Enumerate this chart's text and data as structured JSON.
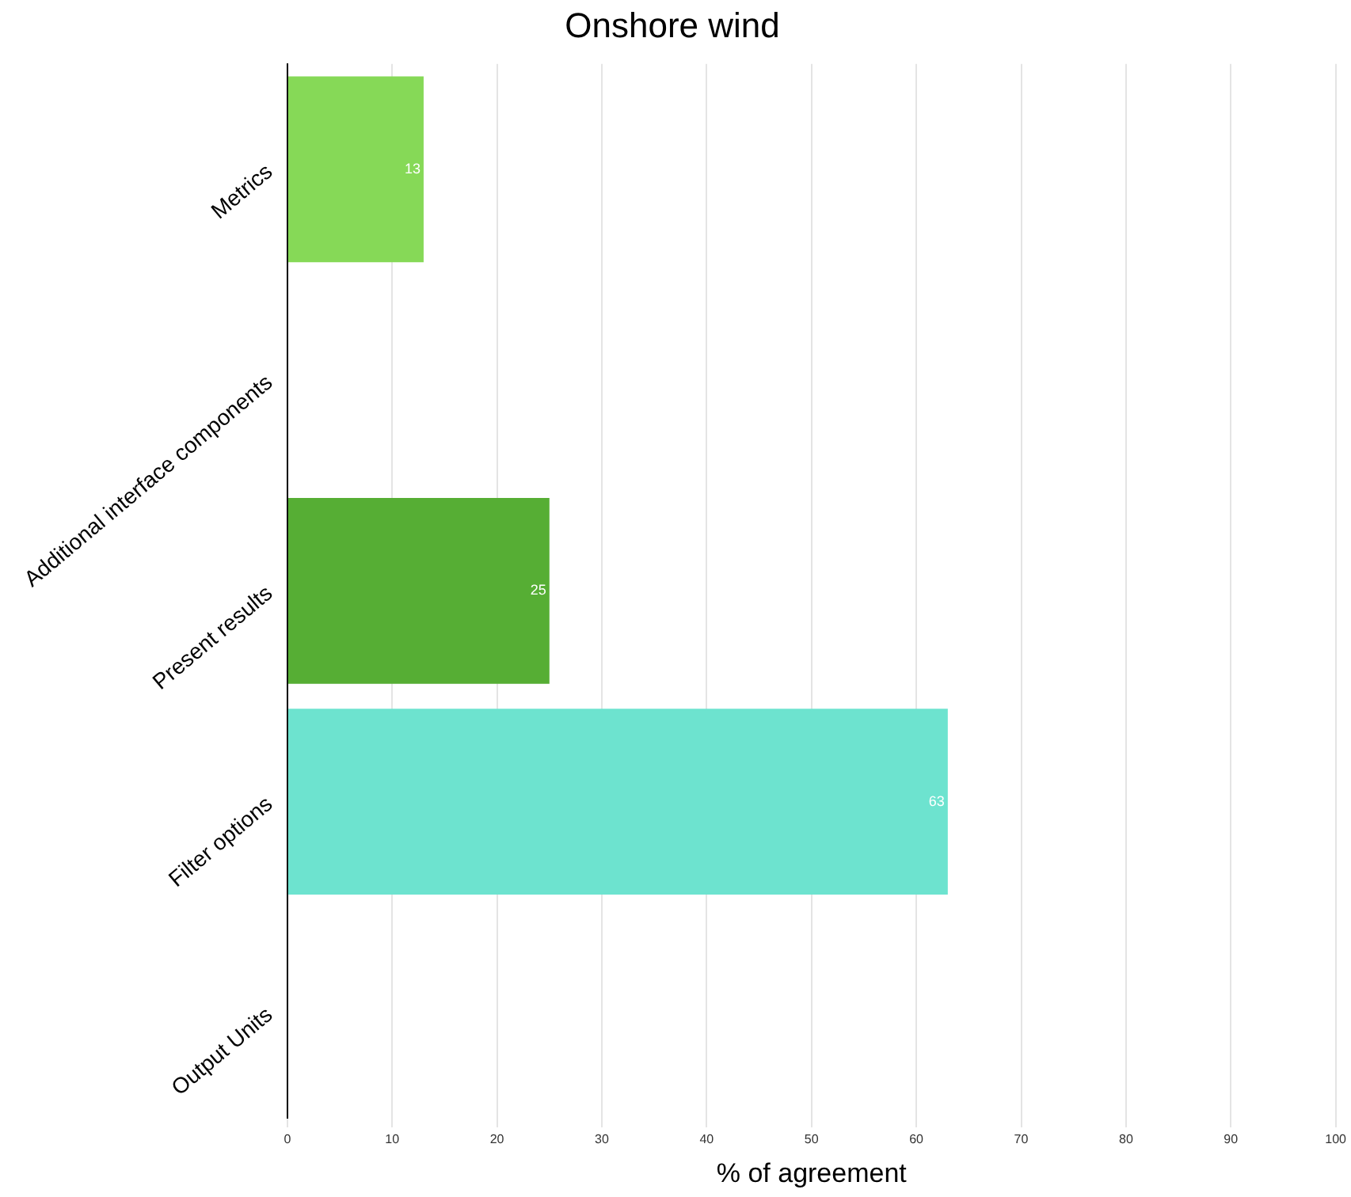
{
  "chart_data": {
    "type": "bar",
    "orientation": "horizontal",
    "title": "Onshore wind",
    "xlabel": "% of agreement",
    "categories": [
      "Metrics",
      "Additional interface components",
      "Present results",
      "Filter options",
      "Output Units"
    ],
    "values": [
      13,
      null,
      25,
      63,
      null
    ],
    "colors": [
      "#86d957",
      "#86d957",
      "#56ae34",
      "#6de3cf",
      "#6de3cf"
    ],
    "xlim": [
      0,
      100
    ],
    "xticks": [
      0,
      10,
      20,
      30,
      40,
      50,
      60,
      70,
      80,
      90,
      100
    ],
    "grid": "x",
    "data_labels": true
  }
}
